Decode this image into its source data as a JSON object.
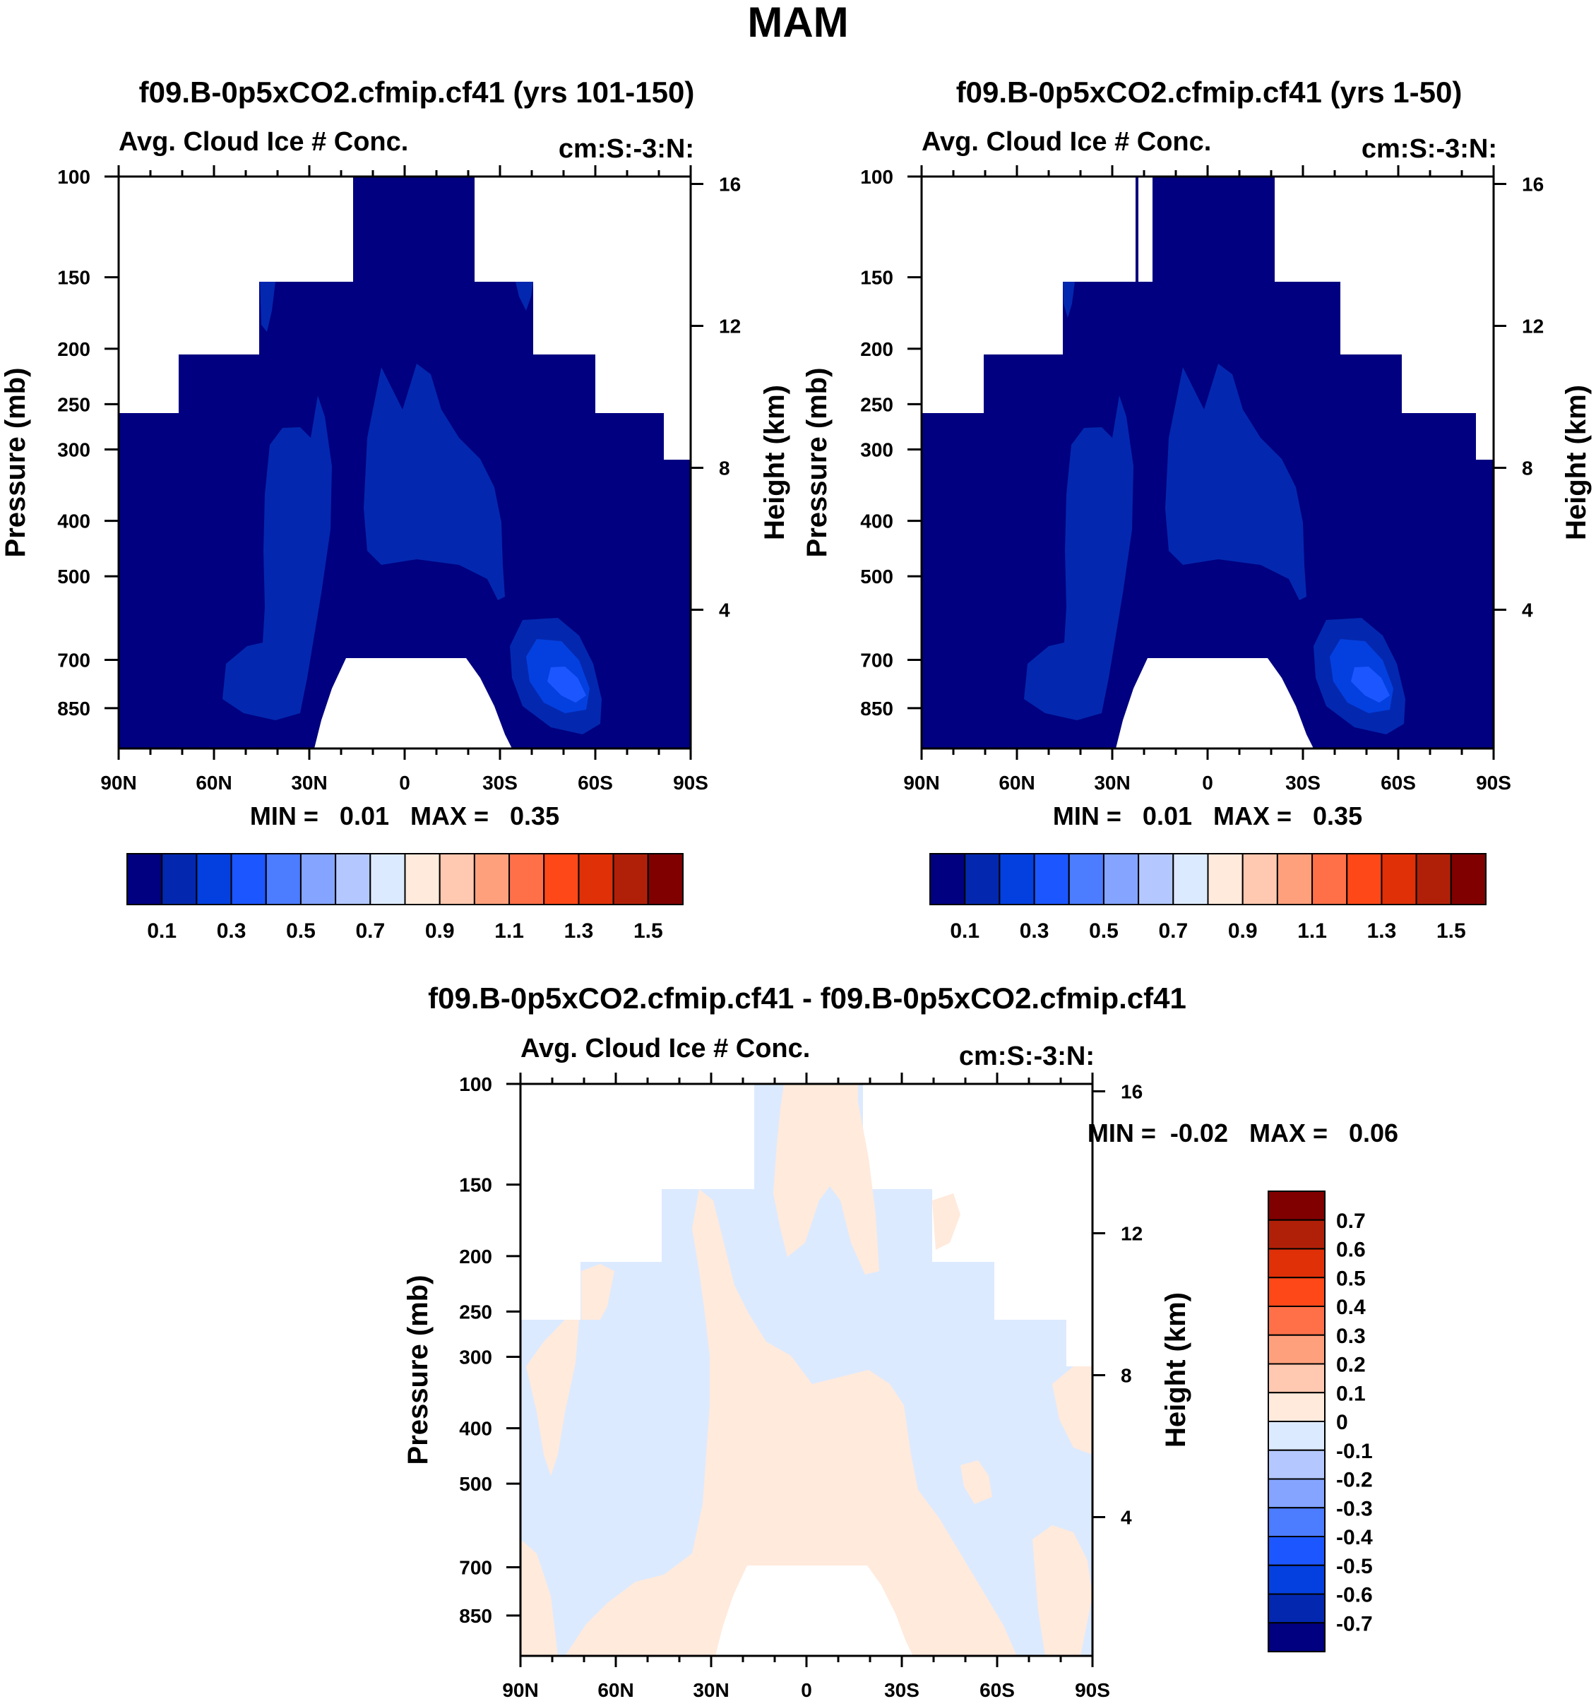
{
  "title": "MAM",
  "colors": {
    "main_scale": [
      "#000080",
      "#0328af",
      "#0440df",
      "#1c56ff",
      "#4c7cff",
      "#84a4ff",
      "#b4c8ff",
      "#dceaff",
      "#ffeadc",
      "#ffc8b0",
      "#ffa07c",
      "#ff7048",
      "#ff4818",
      "#e03008",
      "#b02008",
      "#800000"
    ],
    "diff_scale": [
      "#800000",
      "#b02008",
      "#e03008",
      "#ff4818",
      "#ff7048",
      "#ffa07c",
      "#ffc8b0",
      "#ffeadc",
      "#dceaff",
      "#b4c8ff",
      "#84a4ff",
      "#4c7cff",
      "#1c56ff",
      "#0440df",
      "#0328af",
      "#000080"
    ],
    "ice_base": "#000080",
    "ice_l1": "#0328af",
    "ice_l2": "#0440df",
    "ice_l3": "#1c56ff",
    "diff_neg": "#dceaff",
    "diff_pos": "#ffeadc"
  },
  "chart_data": [
    {
      "type": "heatmap",
      "title": "f09.B-0p5xCO2.cfmip.cf41 (yrs 101-150)",
      "left_label": "Avg. Cloud Ice # Conc.",
      "right_label": "cm:S:-3:N:",
      "ylabel": "Pressure (mb)",
      "y2label": "Height (km)",
      "yticks": [
        "100",
        "150",
        "200",
        "250",
        "300",
        "400",
        "500",
        "700",
        "850"
      ],
      "y2ticks": [
        "16",
        "12",
        "8",
        "4"
      ],
      "xticks": [
        "90N",
        "60N",
        "30N",
        "0",
        "30S",
        "60S",
        "90S"
      ],
      "stats": "MIN =   0.01   MAX =   0.35",
      "levels": [
        "0.1",
        "0.3",
        "0.5",
        "0.7",
        "0.9",
        "1.1",
        "1.3",
        "1.5"
      ],
      "min": 0.01,
      "max": 0.35
    },
    {
      "type": "heatmap",
      "title": "f09.B-0p5xCO2.cfmip.cf41 (yrs 1-50)",
      "left_label": "Avg. Cloud Ice # Conc.",
      "right_label": "cm:S:-3:N:",
      "ylabel": "Pressure (mb)",
      "y2label": "Height (km)",
      "yticks": [
        "100",
        "150",
        "200",
        "250",
        "300",
        "400",
        "500",
        "700",
        "850"
      ],
      "y2ticks": [
        "16",
        "12",
        "8",
        "4"
      ],
      "xticks": [
        "90N",
        "60N",
        "30N",
        "0",
        "30S",
        "60S",
        "90S"
      ],
      "stats": "MIN =   0.01   MAX =   0.35",
      "levels": [
        "0.1",
        "0.3",
        "0.5",
        "0.7",
        "0.9",
        "1.1",
        "1.3",
        "1.5"
      ],
      "min": 0.01,
      "max": 0.35
    },
    {
      "type": "heatmap",
      "title": "f09.B-0p5xCO2.cfmip.cf41 - f09.B-0p5xCO2.cfmip.cf41",
      "left_label": "Avg. Cloud Ice # Conc.",
      "right_label": "cm:S:-3:N:",
      "ylabel": "Pressure (mb)",
      "y2label": "Height (km)",
      "yticks": [
        "100",
        "150",
        "200",
        "250",
        "300",
        "400",
        "500",
        "700",
        "850"
      ],
      "y2ticks": [
        "16",
        "12",
        "8",
        "4"
      ],
      "xticks": [
        "90N",
        "60N",
        "30N",
        "0",
        "30S",
        "60S",
        "90S"
      ],
      "stats": "MIN =  -0.02   MAX =   0.06",
      "levels": [
        "0.7",
        "0.6",
        "0.5",
        "0.4",
        "0.3",
        "0.2",
        "0.1",
        "0",
        "-0.1",
        "-0.2",
        "-0.3",
        "-0.4",
        "-0.5",
        "-0.6",
        "-0.7"
      ],
      "min": -0.02,
      "max": 0.06
    }
  ]
}
